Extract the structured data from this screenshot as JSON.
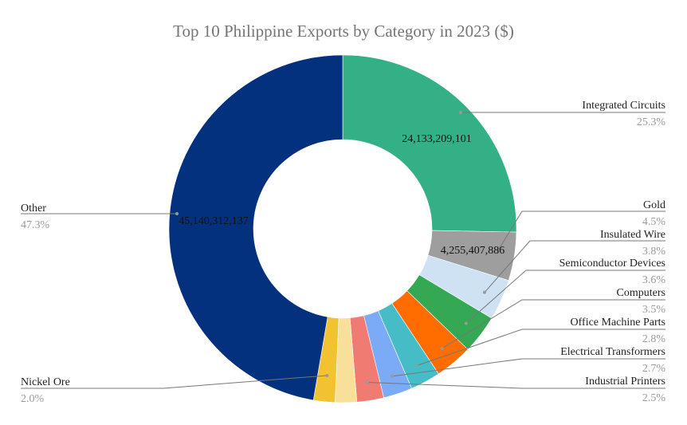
{
  "chart_data": {
    "type": "pie",
    "donut": true,
    "title": "Top 10 Philippine Exports by Category in 2023 ($)",
    "legend": "none",
    "slices": [
      {
        "name": "Integrated Circuits",
        "percent": 25.3,
        "value_label": "24,133,209,101",
        "color": "#33b086"
      },
      {
        "name": "Gold",
        "percent": 4.5,
        "value_label": "4,255,407,886",
        "color": "#9e9e9e"
      },
      {
        "name": "Insulated Wire",
        "percent": 3.8,
        "color": "#cfe2f3"
      },
      {
        "name": "Semiconductor Devices",
        "percent": 3.6,
        "color": "#34a853"
      },
      {
        "name": "Computers",
        "percent": 3.5,
        "color": "#ff6d01"
      },
      {
        "name": "Office Machine Parts",
        "percent": 2.8,
        "color": "#46bdc6"
      },
      {
        "name": "Electrical Transformers",
        "percent": 2.7,
        "color": "#7baaf7"
      },
      {
        "name": "Industrial Printers",
        "percent": 2.5,
        "color": "#f07b72"
      },
      {
        "name": "",
        "percent": 2.0,
        "color": "#f8df9a"
      },
      {
        "name": "Nickel Ore",
        "percent": 2.0,
        "color": "#f2c231"
      },
      {
        "name": "Other",
        "percent": 47.3,
        "value_label": "45,140,312,137",
        "color": "#03317e"
      }
    ]
  }
}
